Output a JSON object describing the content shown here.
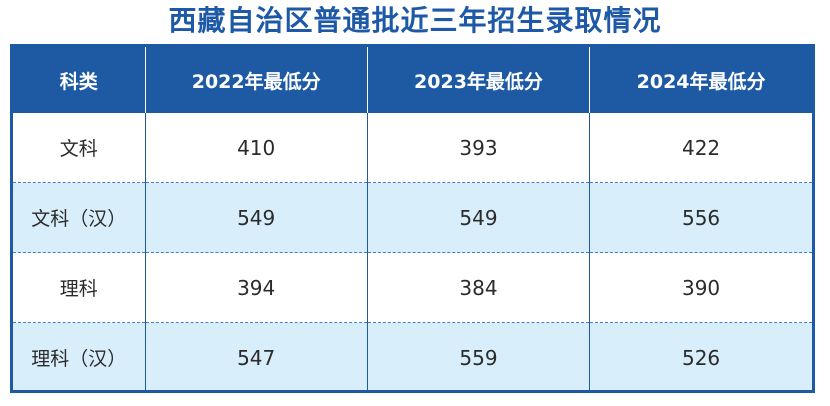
{
  "title": "西藏自治区普通批近三年招生录取情况",
  "table": {
    "headers": [
      "科类",
      "2022年最低分",
      "2023年最低分",
      "2024年最低分"
    ],
    "rows": [
      {
        "category": "文科",
        "y2022": "410",
        "y2023": "393",
        "y2024": "422"
      },
      {
        "category": "文科（汉）",
        "y2022": "549",
        "y2023": "549",
        "y2024": "556"
      },
      {
        "category": "理科",
        "y2022": "394",
        "y2023": "384",
        "y2024": "390"
      },
      {
        "category": "理科（汉）",
        "y2022": "547",
        "y2023": "559",
        "y2024": "526"
      }
    ]
  },
  "colors": {
    "title": "#1d59a6",
    "header_bg": "#1d5aa3",
    "header_text": "#ffffff",
    "stripe_bg": "#d9eefb",
    "border": "#1d5aa3"
  }
}
